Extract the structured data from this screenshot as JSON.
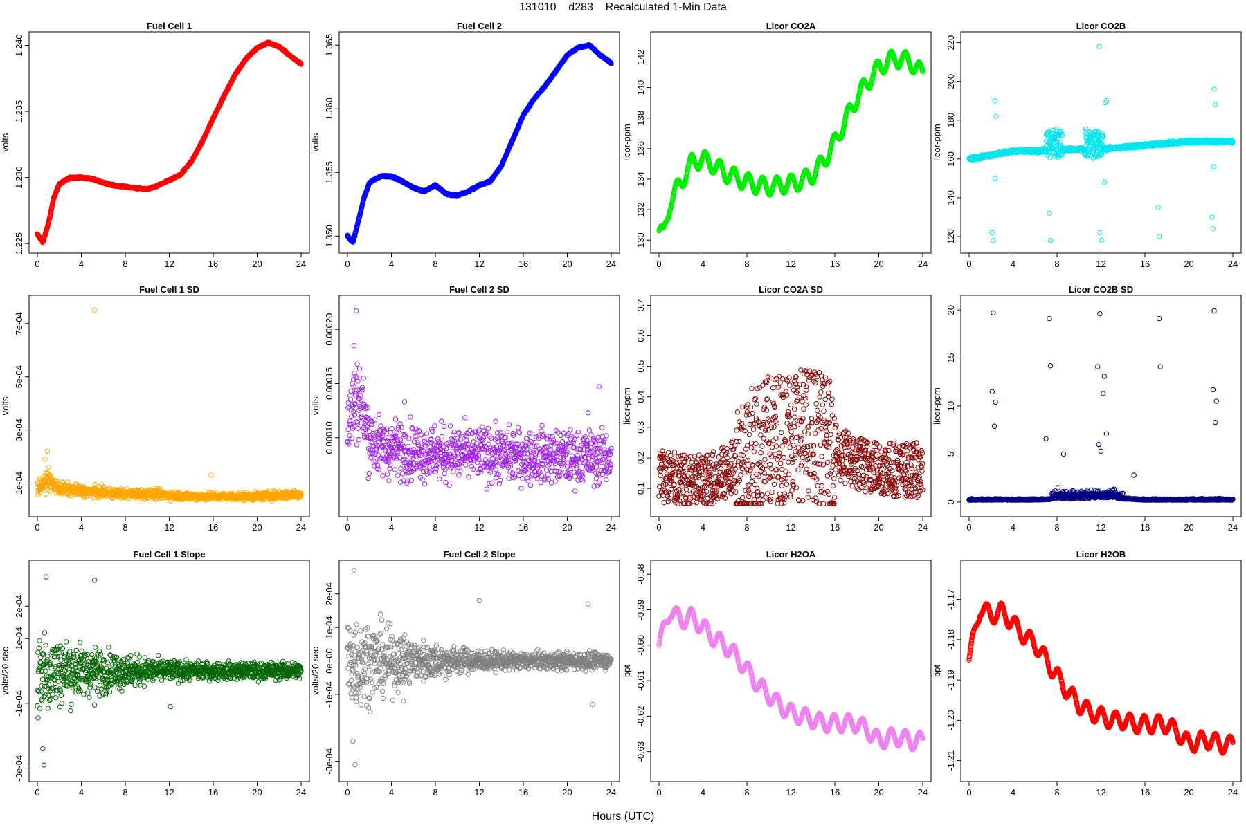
{
  "figure": {
    "title": "131010    d283    Recalculated 1-Min Data",
    "xlabel": "Hours (UTC)"
  },
  "chart_data": [
    {
      "id": "fc1",
      "type": "scatter",
      "title": "Fuel Cell 1",
      "ylabel": "volts",
      "color": "#ff0000",
      "xlim": [
        0,
        24
      ],
      "ylim": [
        1.2248,
        1.2405
      ],
      "xticks": [
        0,
        4,
        8,
        12,
        16,
        20,
        24
      ],
      "xtick_labels": [
        "0",
        "4",
        "8",
        "12",
        "16",
        "20",
        "24"
      ],
      "yticks": [
        1.225,
        1.23,
        1.235,
        1.24
      ],
      "ytick_labels": [
        "1.225",
        "1.230",
        "1.235",
        "1.240"
      ],
      "x": [
        0,
        0.5,
        1,
        1.5,
        2,
        3,
        4,
        5,
        6,
        7,
        8,
        9,
        10,
        11,
        12,
        13,
        14,
        15,
        16,
        17,
        18,
        19,
        20,
        21,
        22,
        23,
        24
      ],
      "y": [
        1.2257,
        1.2251,
        1.2265,
        1.2285,
        1.2295,
        1.23,
        1.23,
        1.2299,
        1.2296,
        1.2294,
        1.2293,
        1.2292,
        1.2291,
        1.2294,
        1.2298,
        1.2302,
        1.2312,
        1.2327,
        1.2345,
        1.2362,
        1.2378,
        1.239,
        1.2398,
        1.2402,
        1.2399,
        1.2392,
        1.2386
      ]
    },
    {
      "id": "fc2",
      "type": "scatter",
      "title": "Fuel Cell 2",
      "ylabel": "volts",
      "color": "#0000ff",
      "xlim": [
        0,
        24
      ],
      "ylim": [
        1.3492,
        1.3655
      ],
      "xticks": [
        0,
        4,
        8,
        12,
        16,
        20,
        24
      ],
      "xtick_labels": [
        "0",
        "4",
        "8",
        "12",
        "16",
        "20",
        "24"
      ],
      "yticks": [
        1.35,
        1.355,
        1.36,
        1.365
      ],
      "ytick_labels": [
        "1.350",
        "1.355",
        "1.360",
        "1.365"
      ],
      "x": [
        0,
        0.5,
        1,
        1.5,
        2,
        3,
        4,
        5,
        6,
        7,
        8,
        9,
        10,
        11,
        12,
        13,
        14,
        15,
        16,
        17,
        18,
        19,
        20,
        21,
        22,
        23,
        24
      ],
      "y": [
        1.35,
        1.3495,
        1.3512,
        1.353,
        1.3542,
        1.3547,
        1.3547,
        1.3543,
        1.3538,
        1.3535,
        1.354,
        1.3533,
        1.3532,
        1.3535,
        1.354,
        1.3543,
        1.3555,
        1.3575,
        1.3595,
        1.3608,
        1.3618,
        1.363,
        1.3642,
        1.3648,
        1.365,
        1.3642,
        1.3636
      ]
    },
    {
      "id": "co2a",
      "type": "scatter",
      "title": "Licor CO2A",
      "ylabel": "licor-ppm",
      "color": "#00ee00",
      "xlim": [
        0,
        24
      ],
      "ylim": [
        129.6,
        143.2
      ],
      "xticks": [
        0,
        4,
        8,
        12,
        16,
        20,
        24
      ],
      "xtick_labels": [
        "0",
        "4",
        "8",
        "12",
        "16",
        "20",
        "24"
      ],
      "yticks": [
        130,
        132,
        134,
        136,
        138,
        140,
        142
      ],
      "ytick_labels": [
        "130",
        "132",
        "134",
        "136",
        "138",
        "140",
        "142"
      ],
      "x": [
        0,
        0.4,
        1,
        2,
        3,
        4,
        5,
        6,
        7,
        8,
        9,
        10,
        11,
        12,
        13,
        14,
        15,
        16,
        17,
        18,
        19,
        20,
        21,
        22,
        23,
        24
      ],
      "y": [
        130.6,
        130.3,
        132.5,
        133.8,
        135.1,
        135.3,
        134.9,
        134.4,
        134.1,
        133.8,
        133.6,
        133.5,
        133.6,
        133.7,
        133.9,
        134.3,
        135.2,
        136.4,
        137.9,
        139.3,
        140.4,
        141.3,
        141.8,
        141.9,
        141.6,
        140.9
      ]
    },
    {
      "id": "co2b",
      "type": "scatter",
      "title": "Licor CO2B",
      "ylabel": "licor-ppm",
      "color": "#00e5ee",
      "xlim": [
        0,
        24
      ],
      "ylim": [
        115,
        222
      ],
      "xticks": [
        0,
        4,
        8,
        12,
        16,
        20,
        24
      ],
      "xtick_labels": [
        "0",
        "4",
        "8",
        "12",
        "16",
        "20",
        "24"
      ],
      "yticks": [
        120,
        140,
        160,
        180,
        200,
        220
      ],
      "ytick_labels": [
        "120",
        "140",
        "160",
        "180",
        "200",
        "220"
      ],
      "x": [
        0,
        2,
        4,
        6,
        8,
        10,
        12,
        14,
        16,
        18,
        20,
        22,
        24
      ],
      "y": [
        160,
        162,
        164,
        164,
        165,
        165,
        165,
        166,
        167,
        168,
        169,
        169,
        169
      ],
      "outliers_x": [
        2.1,
        2.2,
        2.35,
        7.3,
        7.4,
        11.9,
        12.05,
        12.4,
        17.2,
        17.3,
        22.1,
        22.2,
        22.3,
        2.45,
        11.85,
        12.5,
        22.4,
        2.35,
        12.3,
        22.25
      ],
      "outliers_y": [
        122,
        118,
        190,
        132,
        118,
        122,
        118,
        189,
        135,
        120,
        130,
        124,
        196,
        182,
        218,
        190,
        188,
        150,
        148,
        156
      ]
    },
    {
      "id": "fc1sd",
      "type": "scatter",
      "title": "Fuel Cell 1 SD",
      "ylabel": "volts",
      "color": "#ffa500",
      "xlim": [
        0,
        24
      ],
      "ylim": [
        0,
        0.00078
      ],
      "xticks": [
        0,
        4,
        8,
        12,
        16,
        20,
        24
      ],
      "xtick_labels": [
        "0",
        "4",
        "8",
        "12",
        "16",
        "20",
        "24"
      ],
      "yticks": [
        0.0001,
        0.0003,
        0.0005,
        0.0007
      ],
      "ytick_labels": [
        "1e-04",
        "3e-04",
        "5e-04",
        "7e-04"
      ],
      "x": [
        0,
        1,
        2,
        4,
        6,
        8,
        10,
        12,
        14,
        16,
        18,
        20,
        22,
        24
      ],
      "y": [
        8e-05,
        0.00011,
        8e-05,
        7e-05,
        6.5e-05,
        6e-05,
        6e-05,
        5.5e-05,
        5e-05,
        5e-05,
        5e-05,
        5e-05,
        5.5e-05,
        6e-05
      ],
      "outliers_x": [
        5.2,
        0.9,
        15.8,
        0.7,
        1.0
      ],
      "outliers_y": [
        0.00075,
        0.00022,
        0.00013,
        0.00019,
        0.00016
      ]
    },
    {
      "id": "fc2sd",
      "type": "scatter",
      "title": "Fuel Cell 2 SD",
      "ylabel": "volts",
      "color": "#a020f0",
      "xlim": [
        0,
        24
      ],
      "ylim": [
        3.35e-05,
        0.000225
      ],
      "xticks": [
        0,
        4,
        8,
        12,
        16,
        20,
        24
      ],
      "xtick_labels": [
        "0",
        "4",
        "8",
        "12",
        "16",
        "20",
        "24"
      ],
      "yticks": [
        0.0001,
        0.00015,
        0.0002
      ],
      "ytick_labels": [
        "0.00010",
        "0.00015",
        "0.00020"
      ],
      "x": [
        0,
        0.5,
        1,
        1.5,
        2,
        3,
        4,
        6,
        8,
        10,
        12,
        14,
        16,
        18,
        20,
        22,
        24
      ],
      "y": [
        0.00011,
        0.00013,
        0.00014,
        0.00012,
        0.0001,
        9e-05,
        9e-05,
        8.8e-05,
        8.6e-05,
        8.5e-05,
        8.5e-05,
        8.4e-05,
        8.3e-05,
        8.3e-05,
        8.2e-05,
        8.2e-05,
        8.2e-05
      ],
      "outliers_x": [
        0.8,
        0.6,
        22.9,
        21.9,
        5.2
      ],
      "outliers_y": [
        0.000217,
        0.000185,
        0.000147,
        0.000123,
        0.000133
      ]
    },
    {
      "id": "co2asd",
      "type": "scatter",
      "title": "Licor CO2A SD",
      "ylabel": "licor-ppm",
      "color": "#8b0000",
      "xlim": [
        0,
        24
      ],
      "ylim": [
        0.03,
        0.71
      ],
      "xticks": [
        0,
        4,
        8,
        12,
        16,
        20,
        24
      ],
      "xtick_labels": [
        "0",
        "4",
        "8",
        "12",
        "16",
        "20",
        "24"
      ],
      "yticks": [
        0.1,
        0.2,
        0.3,
        0.4,
        0.5,
        0.6,
        0.7
      ],
      "ytick_labels": [
        "0.1",
        "0.2",
        "0.3",
        "0.4",
        "0.5",
        "0.6",
        "0.7"
      ],
      "x": [
        0,
        2,
        4,
        6,
        8,
        10,
        12,
        14,
        16,
        18,
        20,
        22,
        24
      ],
      "y": [
        0.15,
        0.12,
        0.12,
        0.15,
        0.2,
        0.25,
        0.28,
        0.28,
        0.22,
        0.18,
        0.17,
        0.16,
        0.16
      ]
    },
    {
      "id": "co2bsd",
      "type": "scatter",
      "title": "Licor CO2B SD",
      "ylabel": "licor-ppm",
      "color": "#000080",
      "xlim": [
        0,
        24
      ],
      "ylim": [
        -0.8,
        20.8
      ],
      "xticks": [
        0,
        4,
        8,
        12,
        16,
        20,
        24
      ],
      "xtick_labels": [
        "0",
        "4",
        "8",
        "12",
        "16",
        "20",
        "24"
      ],
      "yticks": [
        0,
        5,
        10,
        15,
        20
      ],
      "ytick_labels": [
        "0",
        "5",
        "10",
        "15",
        "20"
      ],
      "x": [
        0,
        2,
        4,
        6,
        8,
        10,
        12,
        14,
        16,
        18,
        20,
        22,
        24
      ],
      "y": [
        0.2,
        0.2,
        0.2,
        0.2,
        0.3,
        0.3,
        0.4,
        0.3,
        0.2,
        0.2,
        0.2,
        0.2,
        0.2
      ],
      "outliers_x": [
        2.2,
        7.3,
        11.9,
        17.3,
        22.3,
        2.1,
        2.4,
        7.4,
        11.7,
        12.3,
        17.4,
        22.2,
        2.3,
        12.2,
        22.4,
        7.0,
        8.6,
        12.5,
        11.8,
        22.5,
        15.0,
        12.0
      ],
      "outliers_y": [
        19.7,
        19.1,
        19.6,
        19.1,
        19.9,
        11.5,
        10.4,
        14.2,
        14.1,
        13.1,
        14.1,
        11.7,
        7.9,
        11.3,
        8.3,
        6.6,
        5.0,
        7.1,
        6.0,
        10.5,
        2.8,
        5.3
      ]
    },
    {
      "id": "fc1slope",
      "type": "scatter",
      "title": "Fuel Cell 1 Slope",
      "ylabel": "volts/20-sec",
      "color": "#006400",
      "xlim": [
        0,
        24
      ],
      "ylim": [
        -0.00032,
        0.00032
      ],
      "xticks": [
        0,
        4,
        8,
        12,
        16,
        20,
        24
      ],
      "xtick_labels": [
        "0",
        "4",
        "8",
        "12",
        "16",
        "20",
        "24"
      ],
      "yticks": [
        -0.0003,
        -0.0001,
        0.0001,
        0.0002
      ],
      "ytick_labels": [
        "-3e-04",
        "-1e-04",
        "1e-04",
        "2e-04"
      ],
      "spread_x": [
        0,
        2,
        4,
        6,
        8,
        10,
        12,
        14,
        16,
        18,
        20,
        22,
        24
      ],
      "spread": [
        0.00012,
        8e-05,
        6e-05,
        5e-05,
        4e-05,
        3e-05,
        2.5e-05,
        2e-05,
        2e-05,
        2e-05,
        2e-05,
        2e-05,
        2e-05
      ],
      "outliers_x": [
        0.8,
        5.2,
        0.6,
        0.5,
        12.1,
        5.2
      ],
      "outliers_y": [
        0.00029,
        0.00028,
        -0.00029,
        -0.00024,
        -0.00011,
        -0.000105
      ]
    },
    {
      "id": "fc2slope",
      "type": "scatter",
      "title": "Fuel Cell 2 Slope",
      "ylabel": "volts/20-sec",
      "color": "#808080",
      "xlim": [
        0,
        24
      ],
      "ylim": [
        -0.00034,
        0.00028
      ],
      "xticks": [
        0,
        4,
        8,
        12,
        16,
        20,
        24
      ],
      "xtick_labels": [
        "0",
        "4",
        "8",
        "12",
        "16",
        "20",
        "24"
      ],
      "yticks": [
        -0.0003,
        -0.0001,
        0,
        0.0001,
        0.0002
      ],
      "ytick_labels": [
        "-3e-04",
        "-1e-04",
        "0e+00",
        "1e-04",
        "2e-04"
      ],
      "spread_x": [
        0,
        2,
        4,
        6,
        8,
        10,
        12,
        14,
        16,
        18,
        20,
        22,
        24
      ],
      "spread": [
        0.00012,
        9e-05,
        7e-05,
        5e-05,
        4e-05,
        3e-05,
        2.5e-05,
        2e-05,
        2e-05,
        2e-05,
        2e-05,
        2e-05,
        2e-05
      ],
      "outliers_x": [
        0.6,
        0.7,
        0.5,
        22.3,
        12.0,
        5.1,
        21.9
      ],
      "outliers_y": [
        0.00027,
        -0.00031,
        -0.00024,
        -0.00013,
        0.00018,
        -0.00012,
        0.00017
      ]
    },
    {
      "id": "h2oa",
      "type": "scatter",
      "title": "Licor H2OA",
      "ylabel": "ppt",
      "color": "#ee82ee",
      "xlim": [
        0,
        24
      ],
      "ylim": [
        -0.6365,
        -0.578
      ],
      "xticks": [
        0,
        4,
        8,
        12,
        16,
        20,
        24
      ],
      "xtick_labels": [
        "0",
        "4",
        "8",
        "12",
        "16",
        "20",
        "24"
      ],
      "yticks": [
        -0.63,
        -0.62,
        -0.61,
        -0.6,
        -0.59,
        -0.58
      ],
      "ytick_labels": [
        "-0.63",
        "-0.62",
        "-0.61",
        "-0.60",
        "-0.59",
        "-0.58"
      ],
      "x": [
        0,
        1,
        2,
        3,
        4,
        5,
        6,
        7,
        8,
        9,
        10,
        11,
        12,
        13,
        14,
        15,
        16,
        17,
        18,
        19,
        20,
        21,
        22,
        23,
        24
      ],
      "y": [
        -0.6,
        -0.59,
        -0.593,
        -0.592,
        -0.595,
        -0.598,
        -0.6,
        -0.603,
        -0.607,
        -0.611,
        -0.614,
        -0.617,
        -0.619,
        -0.62,
        -0.621,
        -0.622,
        -0.622,
        -0.622,
        -0.622,
        -0.624,
        -0.627,
        -0.626,
        -0.626,
        -0.627,
        -0.627
      ]
    },
    {
      "id": "h2ob",
      "type": "scatter",
      "title": "Licor H2OB",
      "ylabel": "ppt",
      "color": "#ff0000",
      "xlim": [
        0,
        24
      ],
      "ylim": [
        -1.2135,
        -1.162
      ],
      "xticks": [
        0,
        4,
        8,
        12,
        16,
        20,
        24
      ],
      "xtick_labels": [
        "0",
        "4",
        "8",
        "12",
        "16",
        "20",
        "24"
      ],
      "yticks": [
        -1.21,
        -1.2,
        -1.19,
        -1.18,
        -1.17
      ],
      "ytick_labels": [
        "-1.21",
        "-1.20",
        "-1.19",
        "-1.18",
        "-1.17"
      ],
      "x": [
        0,
        1,
        2,
        3,
        4,
        5,
        6,
        7,
        8,
        9,
        10,
        11,
        12,
        13,
        14,
        15,
        16,
        17,
        18,
        19,
        20,
        21,
        22,
        23,
        24
      ],
      "y": [
        -1.185,
        -1.172,
        -1.174,
        -1.173,
        -1.176,
        -1.179,
        -1.181,
        -1.185,
        -1.189,
        -1.193,
        -1.196,
        -1.198,
        -1.199,
        -1.2,
        -1.2,
        -1.201,
        -1.201,
        -1.201,
        -1.201,
        -1.203,
        -1.206,
        -1.205,
        -1.205,
        -1.206,
        -1.206
      ]
    }
  ]
}
